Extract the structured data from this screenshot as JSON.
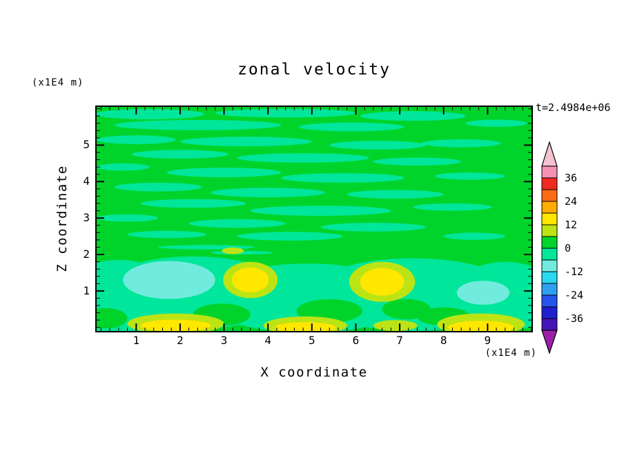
{
  "chart_data": {
    "type": "heatmap",
    "variant": "filled-contour",
    "title": "zonal velocity",
    "timestamp": "t=2.4984e+06",
    "xlabel": "X coordinate",
    "ylabel": "Z coordinate",
    "xunits": "(x1E4 m)",
    "yunits": "(x1E4 m)",
    "xlim": [
      0.1,
      10.0
    ],
    "ylim": [
      -0.1,
      6.05
    ],
    "x_ticks": [
      1,
      2,
      3,
      4,
      5,
      6,
      7,
      8,
      9
    ],
    "y_ticks": [
      1,
      2,
      3,
      4,
      5
    ],
    "minor_tick_step": 0.2,
    "background_band": 0,
    "colorbar": {
      "labels": [
        "36",
        "24",
        "12",
        "0",
        "-12",
        "-24",
        "-36"
      ],
      "arrow_top_color": "#F4C2CF",
      "arrow_bottom_color": "#9A1FA8",
      "cells": [
        {
          "from": 36,
          "to": 42,
          "color": "#F590B5"
        },
        {
          "from": 30,
          "to": 36,
          "color": "#EF2A1E"
        },
        {
          "from": 24,
          "to": 30,
          "color": "#FA6C13"
        },
        {
          "from": 18,
          "to": 24,
          "color": "#FFAD00"
        },
        {
          "from": 12,
          "to": 18,
          "color": "#FFE700"
        },
        {
          "from": 6,
          "to": 12,
          "color": "#BCE414"
        },
        {
          "from": 0,
          "to": 6,
          "color": "#00D42A"
        },
        {
          "from": -6,
          "to": 0,
          "color": "#00E69A"
        },
        {
          "from": -12,
          "to": -6,
          "color": "#71EBDD"
        },
        {
          "from": -18,
          "to": -12,
          "color": "#29D8EE"
        },
        {
          "from": -24,
          "to": -18,
          "color": "#2F9FF2"
        },
        {
          "from": -30,
          "to": -24,
          "color": "#2455EC"
        },
        {
          "from": -36,
          "to": -30,
          "color": "#2020CE"
        },
        {
          "from": -42,
          "to": -36,
          "color": "#4613B8"
        }
      ]
    },
    "features": [
      {
        "band": -6,
        "cx": 0.6,
        "cy": 0.8,
        "rx": 1.4,
        "ry": 1.05
      },
      {
        "band": -6,
        "cx": 2.3,
        "cy": 0.95,
        "rx": 2.2,
        "ry": 1.0
      },
      {
        "band": -6,
        "cx": 4.9,
        "cy": 0.8,
        "rx": 2.4,
        "ry": 0.95
      },
      {
        "band": -6,
        "cx": 7.3,
        "cy": 0.9,
        "rx": 2.4,
        "ry": 1.0
      },
      {
        "band": -6,
        "cx": 9.4,
        "cy": 0.85,
        "rx": 1.2,
        "ry": 0.95
      },
      {
        "band": -6,
        "cx": 1.3,
        "cy": 5.85,
        "rx": 1.25,
        "ry": 0.14
      },
      {
        "band": -6,
        "cx": 4.4,
        "cy": 5.88,
        "rx": 1.6,
        "ry": 0.12
      },
      {
        "band": -6,
        "cx": 7.3,
        "cy": 5.8,
        "rx": 1.2,
        "ry": 0.13
      },
      {
        "band": -6,
        "cx": 9.2,
        "cy": 5.6,
        "rx": 0.7,
        "ry": 0.1
      },
      {
        "band": -6,
        "cx": 2.4,
        "cy": 5.55,
        "rx": 1.9,
        "ry": 0.14
      },
      {
        "band": -6,
        "cx": 5.9,
        "cy": 5.5,
        "rx": 1.2,
        "ry": 0.12
      },
      {
        "band": -6,
        "cx": 1.0,
        "cy": 5.15,
        "rx": 0.9,
        "ry": 0.12
      },
      {
        "band": -6,
        "cx": 3.5,
        "cy": 5.1,
        "rx": 1.5,
        "ry": 0.13
      },
      {
        "band": -6,
        "cx": 6.5,
        "cy": 5.0,
        "rx": 1.1,
        "ry": 0.12
      },
      {
        "band": -6,
        "cx": 8.4,
        "cy": 5.05,
        "rx": 0.9,
        "ry": 0.11
      },
      {
        "band": -6,
        "cx": 2.0,
        "cy": 4.75,
        "rx": 1.1,
        "ry": 0.12
      },
      {
        "band": -6,
        "cx": 4.8,
        "cy": 4.65,
        "rx": 1.5,
        "ry": 0.13
      },
      {
        "band": -6,
        "cx": 7.4,
        "cy": 4.55,
        "rx": 1.0,
        "ry": 0.11
      },
      {
        "band": -6,
        "cx": 0.7,
        "cy": 4.4,
        "rx": 0.6,
        "ry": 0.1
      },
      {
        "band": -6,
        "cx": 3.0,
        "cy": 4.25,
        "rx": 1.3,
        "ry": 0.13
      },
      {
        "band": -6,
        "cx": 5.7,
        "cy": 4.1,
        "rx": 1.4,
        "ry": 0.13
      },
      {
        "band": -6,
        "cx": 8.6,
        "cy": 4.15,
        "rx": 0.8,
        "ry": 0.1
      },
      {
        "band": -6,
        "cx": 1.5,
        "cy": 3.85,
        "rx": 1.0,
        "ry": 0.12
      },
      {
        "band": -6,
        "cx": 4.0,
        "cy": 3.7,
        "rx": 1.3,
        "ry": 0.13
      },
      {
        "band": -6,
        "cx": 6.9,
        "cy": 3.65,
        "rx": 1.1,
        "ry": 0.12
      },
      {
        "band": -6,
        "cx": 2.3,
        "cy": 3.4,
        "rx": 1.2,
        "ry": 0.12
      },
      {
        "band": -6,
        "cx": 5.2,
        "cy": 3.2,
        "rx": 1.6,
        "ry": 0.14
      },
      {
        "band": -6,
        "cx": 8.2,
        "cy": 3.3,
        "rx": 0.9,
        "ry": 0.1
      },
      {
        "band": -6,
        "cx": 0.8,
        "cy": 3.0,
        "rx": 0.7,
        "ry": 0.1
      },
      {
        "band": -6,
        "cx": 3.3,
        "cy": 2.85,
        "rx": 1.1,
        "ry": 0.12
      },
      {
        "band": -6,
        "cx": 6.4,
        "cy": 2.75,
        "rx": 1.2,
        "ry": 0.12
      },
      {
        "band": -6,
        "cx": 1.7,
        "cy": 2.55,
        "rx": 0.9,
        "ry": 0.1
      },
      {
        "band": -6,
        "cx": 4.5,
        "cy": 2.5,
        "rx": 1.2,
        "ry": 0.12
      },
      {
        "band": -6,
        "cx": 8.7,
        "cy": 2.5,
        "rx": 0.7,
        "ry": 0.1
      },
      {
        "band": -6,
        "cx": 2.6,
        "cy": 2.2,
        "rx": 1.1,
        "ry": 0.06
      },
      {
        "band": -6,
        "cx": 3.4,
        "cy": 2.05,
        "rx": 0.7,
        "ry": 0.05
      },
      {
        "band": 0,
        "cx": 2.95,
        "cy": 0.35,
        "rx": 0.65,
        "ry": 0.3
      },
      {
        "band": 0,
        "cx": 5.4,
        "cy": 0.45,
        "rx": 0.75,
        "ry": 0.32
      },
      {
        "band": 0,
        "cx": 7.15,
        "cy": 0.5,
        "rx": 0.55,
        "ry": 0.28
      },
      {
        "band": 0,
        "cx": 0.3,
        "cy": 0.25,
        "rx": 0.5,
        "ry": 0.28
      },
      {
        "band": 0,
        "cx": 8.0,
        "cy": 0.3,
        "rx": 0.6,
        "ry": 0.25
      },
      {
        "band": 6,
        "cx": 3.6,
        "cy": 1.3,
        "rx": 0.62,
        "ry": 0.5
      },
      {
        "band": 6,
        "cx": 6.6,
        "cy": 1.25,
        "rx": 0.75,
        "ry": 0.55
      },
      {
        "band": 6,
        "cx": 1.9,
        "cy": 0.1,
        "rx": 1.1,
        "ry": 0.28
      },
      {
        "band": 6,
        "cx": 4.85,
        "cy": 0.05,
        "rx": 0.95,
        "ry": 0.25
      },
      {
        "band": 6,
        "cx": 8.85,
        "cy": 0.08,
        "rx": 1.0,
        "ry": 0.3
      },
      {
        "band": 6,
        "cx": 3.2,
        "cy": 2.1,
        "rx": 0.25,
        "ry": 0.09
      },
      {
        "band": 6,
        "cx": 6.9,
        "cy": 0.05,
        "rx": 0.5,
        "ry": 0.15
      },
      {
        "band": 12,
        "cx": 3.6,
        "cy": 1.3,
        "rx": 0.42,
        "ry": 0.34
      },
      {
        "band": 12,
        "cx": 6.6,
        "cy": 1.25,
        "rx": 0.5,
        "ry": 0.38
      },
      {
        "band": 12,
        "cx": 1.9,
        "cy": 0.05,
        "rx": 0.8,
        "ry": 0.16
      },
      {
        "band": 12,
        "cx": 4.85,
        "cy": 0.0,
        "rx": 0.7,
        "ry": 0.14
      },
      {
        "band": 12,
        "cx": 8.85,
        "cy": 0.0,
        "rx": 0.75,
        "ry": 0.18
      },
      {
        "band": -12,
        "cx": 1.75,
        "cy": 1.3,
        "rx": 1.05,
        "ry": 0.52
      },
      {
        "band": -12,
        "cx": 8.9,
        "cy": 0.95,
        "rx": 0.6,
        "ry": 0.33
      }
    ]
  }
}
